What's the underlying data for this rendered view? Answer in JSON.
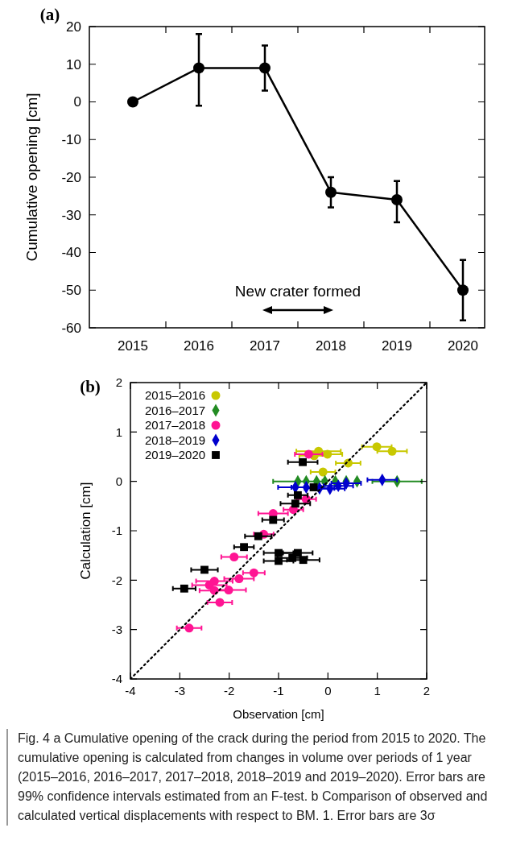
{
  "chart_data": [
    {
      "type": "line",
      "title": "(a)",
      "ylabel": "Cumulative opening [cm]",
      "categories": [
        "2015",
        "2016",
        "2017",
        "2018",
        "2019",
        "2020"
      ],
      "ylim": [
        -60,
        20
      ],
      "yticks": [
        -60,
        -50,
        -40,
        -30,
        -20,
        -10,
        0,
        10,
        20
      ],
      "series": [
        {
          "color": "#000000",
          "marker": "circle",
          "line_style": "solid",
          "values": [
            0,
            9,
            9,
            -24,
            -26,
            -50
          ],
          "errors": [
            null,
            [
              -1,
              18
            ],
            [
              3,
              15
            ],
            [
              -28,
              -20
            ],
            [
              -32,
              -21
            ],
            [
              -58,
              -42
            ]
          ]
        }
      ],
      "annotations": [
        "New crater formed"
      ],
      "grid": false,
      "legend": false
    },
    {
      "type": "scatter",
      "title": "(b)",
      "xlabel": "Observation [cm]",
      "ylabel": "Calculation [cm]",
      "xlim": [
        -4,
        2
      ],
      "xticks": [
        -4,
        -3,
        -2,
        -1,
        0,
        1,
        2
      ],
      "ylim": [
        -4,
        2
      ],
      "yticks": [
        -4,
        -3,
        -2,
        -1,
        0,
        1,
        2
      ],
      "series": [
        {
          "name": "2015–2016",
          "color": "#c8c800",
          "marker": "circle",
          "x": [
            -0.19,
            -0.28,
            -0.01,
            0.99,
            1.3,
            0.41,
            -0.1
          ],
          "values": [
            0.61,
            0.52,
            0.55,
            0.7,
            0.61,
            0.37,
            0.19
          ],
          "xerrors": [
            0.45,
            0.3,
            0.3,
            0.3,
            0.3,
            0.25,
            0.25
          ]
        },
        {
          "name": "2016–2017",
          "color": "#228b22",
          "marker": "diamond",
          "x": [
            -0.61,
            -0.44,
            -0.23,
            -0.06,
            0.15,
            0.37,
            0.59,
            1.4
          ],
          "values": [
            0,
            0,
            0,
            0,
            0,
            0,
            0,
            0
          ],
          "xerrors": [
            0.5,
            null,
            null,
            null,
            null,
            null,
            null,
            0.5
          ]
        },
        {
          "name": "2017–2018",
          "color": "#ff1493",
          "marker": "circle",
          "x": [
            -0.39,
            -0.44,
            -0.7,
            -1.11,
            -1.3,
            -1.9,
            -1.5,
            -1.8,
            -2.3,
            -2.4,
            -2.01,
            -2.3,
            -2.19,
            -2.81
          ],
          "values": [
            0.55,
            -0.36,
            -0.57,
            -0.65,
            -1.07,
            -1.53,
            -1.85,
            -1.97,
            -2.02,
            -2.1,
            -2.2,
            -2.21,
            -2.45,
            -2.97
          ],
          "xerrors": [
            0.28,
            0.2,
            0.2,
            0.3,
            0.2,
            0.26,
            0.22,
            0.3,
            0.37,
            0.35,
            0.35,
            0.3,
            0.25,
            0.25
          ]
        },
        {
          "name": "2018–2019",
          "color": "#0000cd",
          "marker": "diamond",
          "x": [
            -0.66,
            -0.44,
            -0.17,
            0.04,
            0.21,
            0.37,
            1.1
          ],
          "values": [
            -0.12,
            -0.12,
            -0.14,
            -0.15,
            -0.09,
            -0.04,
            0.03
          ],
          "xerrors": [
            0.35,
            0.3,
            0.3,
            0.3,
            0.3,
            0.3,
            0.3
          ]
        },
        {
          "name": "2019–2020",
          "color": "#000000",
          "marker": "square",
          "x": [
            -0.51,
            -0.29,
            -0.61,
            -0.66,
            -1.11,
            -1.41,
            -1.7,
            -2.5,
            -2.91,
            -1.0,
            -1.0,
            -0.61,
            -0.72,
            -0.5
          ],
          "values": [
            0.39,
            -0.12,
            -0.28,
            -0.45,
            -0.78,
            -1.11,
            -1.33,
            -1.79,
            -2.17,
            -1.45,
            -1.61,
            -1.45,
            -1.55,
            -1.59
          ],
          "xerrors": [
            0.3,
            null,
            0.2,
            0.3,
            0.22,
            0.27,
            0.2,
            0.27,
            0.23,
            0.3,
            0.3,
            0.3,
            0.3,
            0.33
          ]
        },
        {
          "type": "line",
          "color": "#000000",
          "marker": "none",
          "line_style": "dotted",
          "x": [
            -4,
            2
          ],
          "values": [
            -4,
            2
          ]
        }
      ],
      "annotations": [
        "Fig. 4 a Cumulative opening of the crack during the period from 2015 to 2020. The cumulative opening is calculated from changes in volume over periods of 1 year (2015–2016, 2016–2017, 2017–2018, 2018–2019 and 2019–2020). Error bars are 99% confidence intervals estimated from an F-test. b Comparison of observed and calculated vertical displacements with respect to BM. 1. Error bars are 3σ"
      ],
      "grid": false,
      "legend": "top left"
    }
  ]
}
